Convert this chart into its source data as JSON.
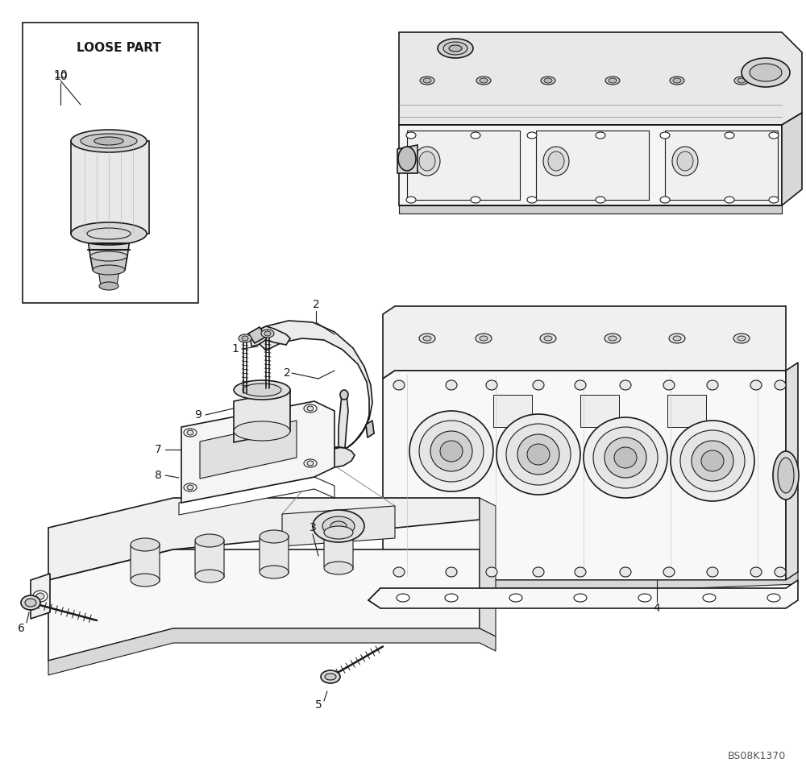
{
  "bg_color": "#ffffff",
  "lc": "#1a1a1a",
  "watermark": "BS08K1370",
  "loose_part_label": "LOOSE PART",
  "fig_width": 10.0,
  "fig_height": 9.52,
  "dpi": 100
}
